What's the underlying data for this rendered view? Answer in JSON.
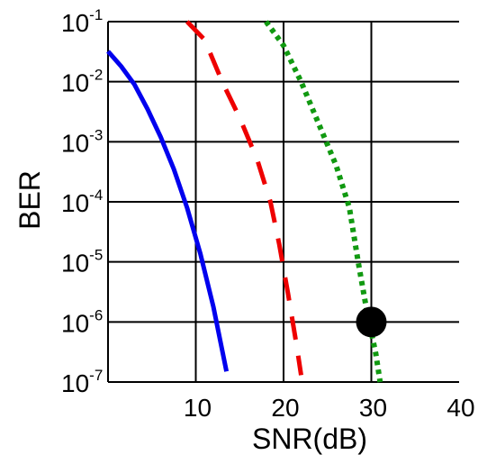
{
  "chart_data": {
    "type": "line",
    "xlabel": "SNR(dB)",
    "ylabel": "BER",
    "xlim": [
      0,
      40
    ],
    "ylim": [
      1e-07,
      0.1
    ],
    "y_scale": "log",
    "grid": true,
    "x_ticks": [
      10,
      20,
      30,
      40
    ],
    "x_tick_labels": [
      "10",
      "20",
      "30",
      "40"
    ],
    "y_ticks": [
      {
        "value": 0.1,
        "base": "10",
        "exp": "-1"
      },
      {
        "value": 0.01,
        "base": "10",
        "exp": "-2"
      },
      {
        "value": 0.001,
        "base": "10",
        "exp": "-3"
      },
      {
        "value": 0.0001,
        "base": "10",
        "exp": "-4"
      },
      {
        "value": 1e-05,
        "base": "10",
        "exp": "-5"
      },
      {
        "value": 1e-06,
        "base": "10",
        "exp": "-6"
      },
      {
        "value": 1e-07,
        "base": "10",
        "exp": "-7"
      }
    ],
    "series": [
      {
        "color": "#0000ee",
        "style": "solid",
        "x": [
          0,
          1.5,
          3,
          4.5,
          6,
          7.5,
          9,
          10.5,
          12,
          13.5
        ],
        "y": [
          0.032,
          0.018,
          0.009,
          0.0035,
          0.0012,
          0.00035,
          8e-05,
          1.4e-05,
          1.8e-06,
          1.5e-07
        ]
      },
      {
        "color": "#ee0000",
        "style": "dashed",
        "x": [
          9,
          11,
          13,
          15,
          17,
          18.5,
          19.5,
          20.5,
          21.5,
          22
        ],
        "y": [
          0.1,
          0.05,
          0.01,
          0.0025,
          0.0005,
          0.0001,
          2e-05,
          3e-06,
          4e-07,
          1.3e-07
        ]
      },
      {
        "color": "#119911",
        "style": "dotted",
        "x": [
          18,
          20,
          22,
          24,
          26,
          27.5,
          28.5,
          29.5,
          30.5,
          31
        ],
        "y": [
          0.1,
          0.04,
          0.01,
          0.002,
          0.0004,
          8e-05,
          1e-05,
          1.5e-06,
          3e-07,
          1e-07
        ]
      }
    ],
    "marker": {
      "shape": "filled-circle",
      "color": "#000000",
      "x": 30,
      "y": 1e-06
    }
  }
}
